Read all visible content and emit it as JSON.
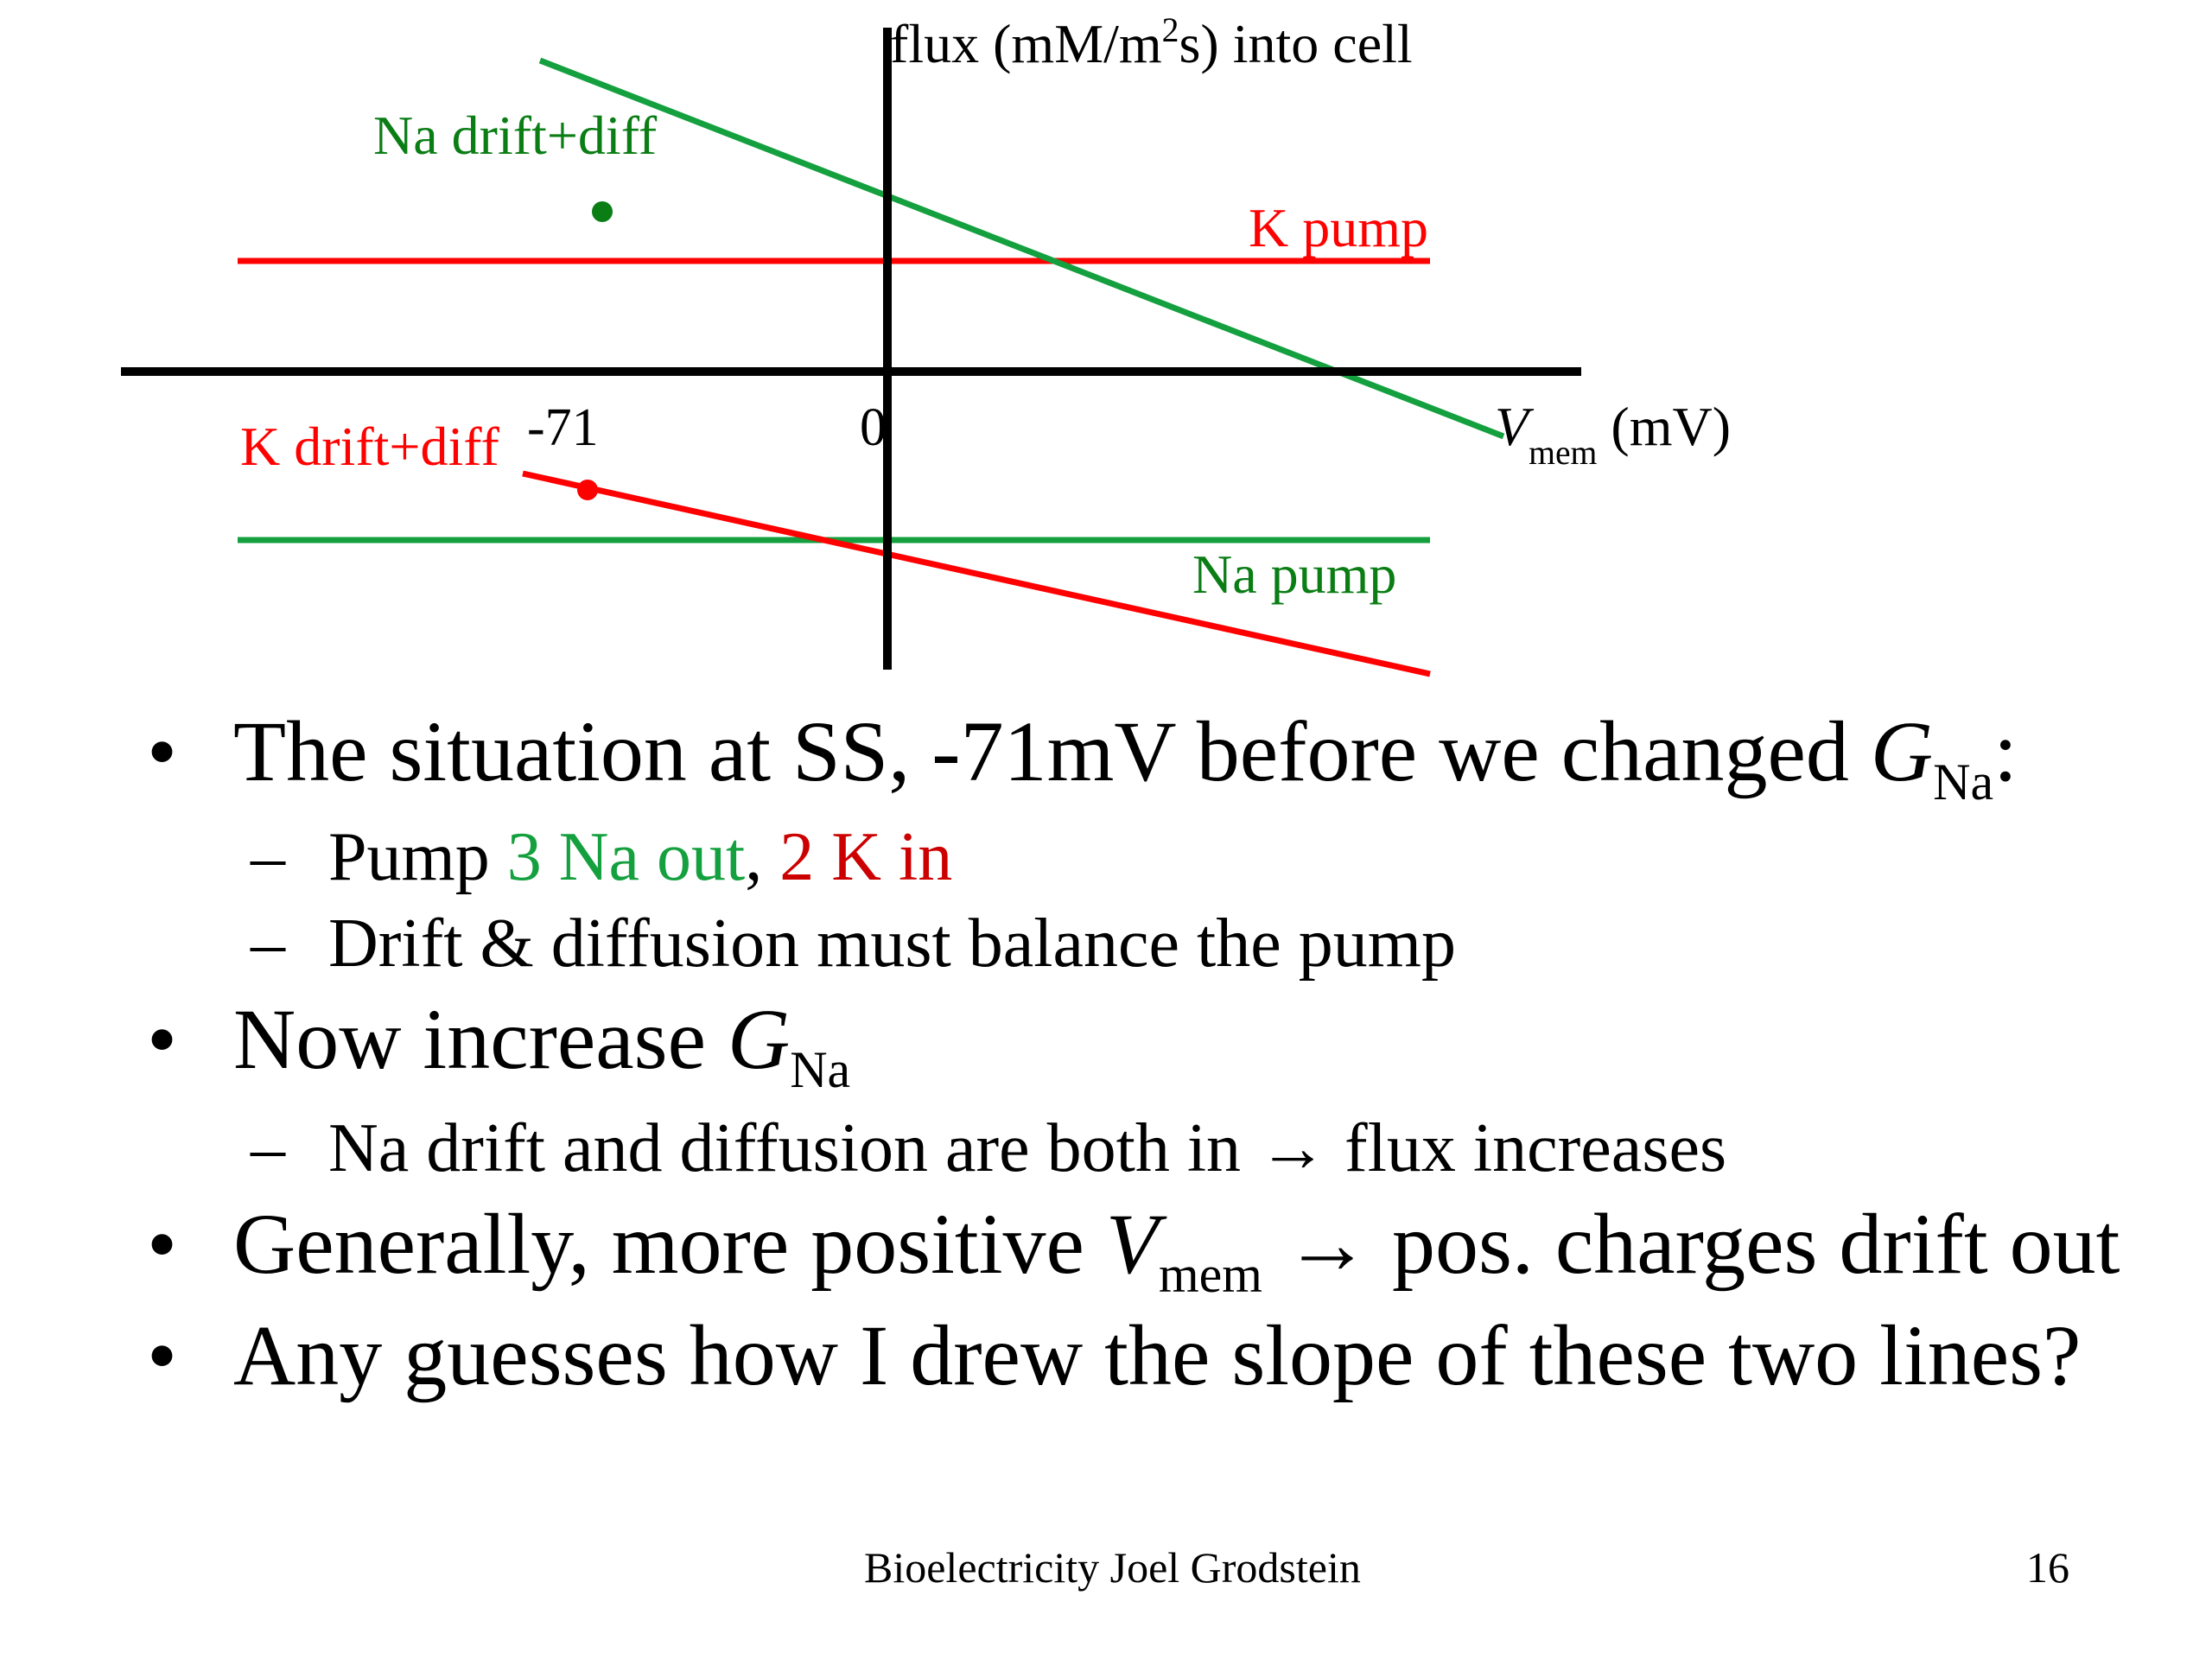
{
  "diagram": {
    "y_axis_label": {
      "text": "flux (mM/m",
      "sup": "2",
      "rest": "s) into cell"
    },
    "x_axis_label": {
      "var": "V",
      "sub": "mem",
      "unit": " (mV)"
    },
    "tick_neg71": "-71",
    "tick_zero": "0",
    "labels": {
      "na_drift": "Na drift+diff",
      "k_pump": "K pump",
      "k_drift": "K drift+diff",
      "na_pump": "Na pump"
    },
    "colors": {
      "green": "#14a03e",
      "dark_green": "#0a7d15",
      "red": "#ff0000",
      "black": "#000000"
    }
  },
  "bullets": {
    "b1": {
      "text": "The situation at SS, -71mV before we changed ",
      "var": "G",
      "sub": "Na",
      "end": ":"
    },
    "b1_sub1": {
      "prefix": "Pump ",
      "green": "3 Na out",
      "comma": ", ",
      "red": "2 K in"
    },
    "b1_sub2": "Drift & diffusion must balance the pump",
    "b2": {
      "text": "Now increase ",
      "var": "G",
      "sub": "Na"
    },
    "b2_sub1": "Na drift and diffusion are both in → flux increases",
    "b3": {
      "text": "Generally, more positive ",
      "var": "V",
      "sub": "mem",
      "rest": " → pos. charges drift out"
    },
    "b4": "Any guesses how I drew the slope of these two lines?"
  },
  "footer": {
    "center": "Bioelectricity Joel Grodstein",
    "page": "16"
  }
}
